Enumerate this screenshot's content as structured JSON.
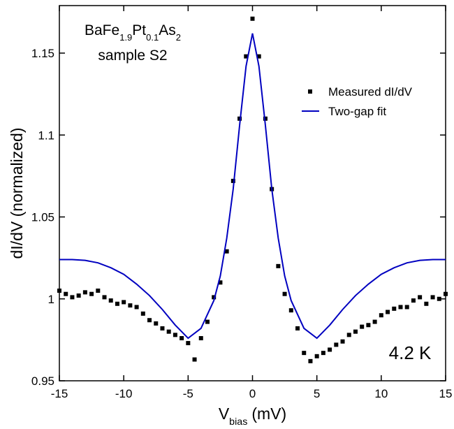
{
  "chart_data": {
    "type": "scatter",
    "title": [
      {
        "text": "BaFe"
      },
      {
        "text": "1.9",
        "sub": true
      },
      {
        "text": "Pt"
      },
      {
        "text": "0.1",
        "sub": true
      },
      {
        "text": "As"
      },
      {
        "text": "2",
        "sub": true
      }
    ],
    "subtitle": "sample S2",
    "annotation": "4.2 K",
    "xlabel": [
      {
        "text": "V"
      },
      {
        "text": "bias",
        "sub": true
      },
      {
        "text": "(mV)"
      }
    ],
    "ylabel": "dI/dV (normalized)",
    "xlim": [
      -15,
      15
    ],
    "xticks": [
      -15,
      -10,
      -5,
      0,
      5,
      10,
      15
    ],
    "ylim": [
      0.95,
      1.179
    ],
    "yticks": [
      0.95,
      1,
      1.05,
      1.1,
      1.15
    ],
    "series": [
      {
        "name": "Measured dI/dV",
        "type": "scatter",
        "color": "#000000",
        "x": [
          -15,
          -14.5,
          -14,
          -13.5,
          -13,
          -12.5,
          -12,
          -11.5,
          -11,
          -10.5,
          -10,
          -9.5,
          -9,
          -8.5,
          -8,
          -7.5,
          -7,
          -6.5,
          -6,
          -5.5,
          -5,
          -4.5,
          -4,
          -3.5,
          -3,
          -2.5,
          -2,
          -1.5,
          -1,
          -0.5,
          0,
          0.5,
          1,
          1.5,
          2,
          2.5,
          3,
          3.5,
          4,
          4.5,
          5,
          5.5,
          6,
          6.5,
          7,
          7.5,
          8,
          8.5,
          9,
          9.5,
          10,
          10.5,
          11,
          11.5,
          12,
          12.5,
          13,
          13.5,
          14,
          14.5,
          15
        ],
        "values": [
          1.005,
          1.003,
          1.001,
          1.002,
          1.004,
          1.003,
          1.005,
          1.001,
          0.999,
          0.997,
          0.998,
          0.996,
          0.995,
          0.991,
          0.987,
          0.985,
          0.982,
          0.98,
          0.978,
          0.976,
          0.973,
          0.963,
          0.976,
          0.986,
          1.001,
          1.01,
          1.029,
          1.072,
          1.11,
          1.148,
          1.171,
          1.148,
          1.11,
          1.067,
          1.02,
          1.003,
          0.993,
          0.982,
          0.967,
          0.962,
          0.965,
          0.967,
          0.969,
          0.972,
          0.974,
          0.978,
          0.98,
          0.983,
          0.984,
          0.986,
          0.99,
          0.992,
          0.994,
          0.995,
          0.995,
          0.999,
          1.001,
          0.997,
          1.001,
          1.0,
          1.003
        ]
      },
      {
        "name": "Two-gap fit",
        "type": "line",
        "color": "#0000c0",
        "x": [
          -15,
          -14,
          -13,
          -12,
          -11,
          -10,
          -9,
          -8,
          -7,
          -6,
          -5,
          -4,
          -3,
          -2.5,
          -2,
          -1.5,
          -1,
          -0.5,
          0,
          0.5,
          1,
          1.5,
          2,
          2.5,
          3,
          4,
          5,
          6,
          7,
          8,
          9,
          10,
          11,
          12,
          13,
          14,
          15
        ],
        "values": [
          1.024,
          1.024,
          1.0235,
          1.022,
          1.019,
          1.015,
          1.009,
          1.002,
          0.9935,
          0.984,
          0.976,
          0.982,
          0.999,
          1.014,
          1.037,
          1.067,
          1.106,
          1.142,
          1.162,
          1.142,
          1.106,
          1.067,
          1.037,
          1.014,
          0.999,
          0.982,
          0.976,
          0.984,
          0.9935,
          1.002,
          1.009,
          1.015,
          1.019,
          1.022,
          1.0235,
          1.024,
          1.024
        ]
      }
    ]
  }
}
